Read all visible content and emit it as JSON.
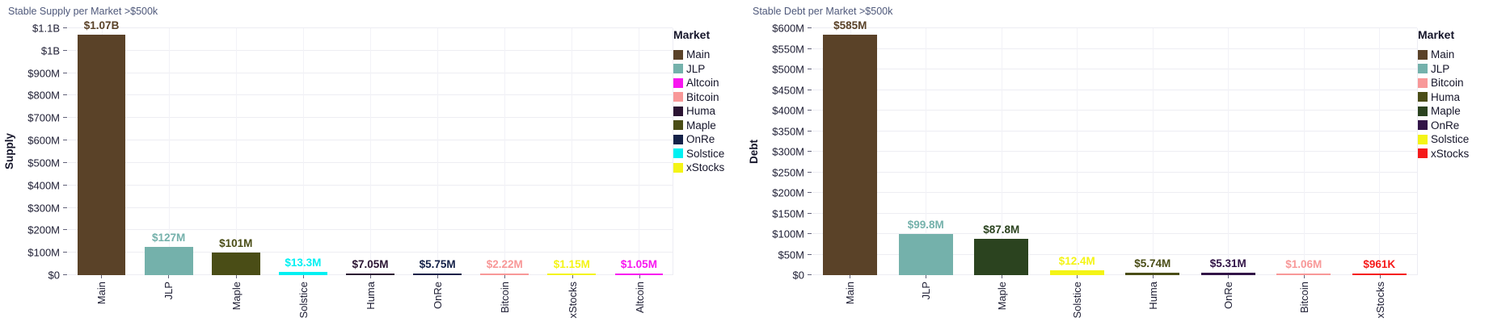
{
  "chart_data": [
    {
      "type": "bar",
      "title": "Stable Supply per Market >$500k",
      "ylabel": "Supply",
      "xlabel": "",
      "legend_title": "Market",
      "legend_position": "right",
      "grid": true,
      "unit": "USD millions",
      "ylim": [
        0,
        1100
      ],
      "yticks": [
        {
          "label": "$0",
          "value": 0
        },
        {
          "label": "$100M",
          "value": 100
        },
        {
          "label": "$200M",
          "value": 200
        },
        {
          "label": "$300M",
          "value": 300
        },
        {
          "label": "$400M",
          "value": 400
        },
        {
          "label": "$500M",
          "value": 500
        },
        {
          "label": "$600M",
          "value": 600
        },
        {
          "label": "$700M",
          "value": 700
        },
        {
          "label": "$800M",
          "value": 800
        },
        {
          "label": "$900M",
          "value": 900
        },
        {
          "label": "$1B",
          "value": 1000
        },
        {
          "label": "$1.1B",
          "value": 1100
        }
      ],
      "bars": [
        {
          "label": "Main",
          "value": 1070,
          "text": "$1.07B",
          "color": "#5a4228"
        },
        {
          "label": "JLP",
          "value": 127,
          "text": "$127M",
          "color": "#74b1ab"
        },
        {
          "label": "Maple",
          "value": 101,
          "text": "$101M",
          "color": "#4a4d16"
        },
        {
          "label": "Solstice",
          "value": 13.3,
          "text": "$13.3M",
          "color": "#00f0f2"
        },
        {
          "label": "Huma",
          "value": 7.05,
          "text": "$7.05M",
          "color": "#2b1432"
        },
        {
          "label": "OnRe",
          "value": 5.75,
          "text": "$5.75M",
          "color": "#142148"
        },
        {
          "label": "Bitcoin",
          "value": 2.22,
          "text": "$2.22M",
          "color": "#f89898"
        },
        {
          "label": "xStocks",
          "value": 1.15,
          "text": "$1.15M",
          "color": "#f4f416"
        },
        {
          "label": "Altcoin",
          "value": 1.05,
          "text": "$1.05M",
          "color": "#f816f0"
        }
      ],
      "legend": [
        {
          "label": "Main",
          "color": "#5a4228"
        },
        {
          "label": "JLP",
          "color": "#74b1ab"
        },
        {
          "label": "Altcoin",
          "color": "#f816f0"
        },
        {
          "label": "Bitcoin",
          "color": "#f89898"
        },
        {
          "label": "Huma",
          "color": "#2b1432"
        },
        {
          "label": "Maple",
          "color": "#4a4d16"
        },
        {
          "label": "OnRe",
          "color": "#142148"
        },
        {
          "label": "Solstice",
          "color": "#00f0f2"
        },
        {
          "label": "xStocks",
          "color": "#f4f416"
        }
      ]
    },
    {
      "type": "bar",
      "title": "Stable Debt per Market >$500k",
      "ylabel": "Debt",
      "xlabel": "",
      "legend_title": "Market",
      "legend_position": "right",
      "grid": true,
      "unit": "USD millions",
      "ylim": [
        0,
        600
      ],
      "yticks": [
        {
          "label": "$0",
          "value": 0
        },
        {
          "label": "$50M",
          "value": 50
        },
        {
          "label": "$100M",
          "value": 100
        },
        {
          "label": "$150M",
          "value": 150
        },
        {
          "label": "$200M",
          "value": 200
        },
        {
          "label": "$250M",
          "value": 250
        },
        {
          "label": "$300M",
          "value": 300
        },
        {
          "label": "$350M",
          "value": 350
        },
        {
          "label": "$400M",
          "value": 400
        },
        {
          "label": "$450M",
          "value": 450
        },
        {
          "label": "$500M",
          "value": 500
        },
        {
          "label": "$550M",
          "value": 550
        },
        {
          "label": "$600M",
          "value": 600
        }
      ],
      "bars": [
        {
          "label": "Main",
          "value": 585,
          "text": "$585M",
          "color": "#5a4228"
        },
        {
          "label": "JLP",
          "value": 99.8,
          "text": "$99.8M",
          "color": "#74b1ab"
        },
        {
          "label": "Maple",
          "value": 87.8,
          "text": "$87.8M",
          "color": "#2b431f"
        },
        {
          "label": "Solstice",
          "value": 12.4,
          "text": "$12.4M",
          "color": "#f4f416"
        },
        {
          "label": "Huma",
          "value": 5.74,
          "text": "$5.74M",
          "color": "#4a4d16"
        },
        {
          "label": "OnRe",
          "value": 5.31,
          "text": "$5.31M",
          "color": "#321447"
        },
        {
          "label": "Bitcoin",
          "value": 1.06,
          "text": "$1.06M",
          "color": "#f89898"
        },
        {
          "label": "xStocks",
          "value": 0.961,
          "text": "$961K",
          "color": "#f51a1a"
        }
      ],
      "legend": [
        {
          "label": "Main",
          "color": "#5a4228"
        },
        {
          "label": "JLP",
          "color": "#74b1ab"
        },
        {
          "label": "Bitcoin",
          "color": "#f89898"
        },
        {
          "label": "Huma",
          "color": "#4a4d16"
        },
        {
          "label": "Maple",
          "color": "#2b431f"
        },
        {
          "label": "OnRe",
          "color": "#321447"
        },
        {
          "label": "Solstice",
          "color": "#f4f416"
        },
        {
          "label": "xStocks",
          "color": "#f51a1a"
        }
      ]
    }
  ]
}
